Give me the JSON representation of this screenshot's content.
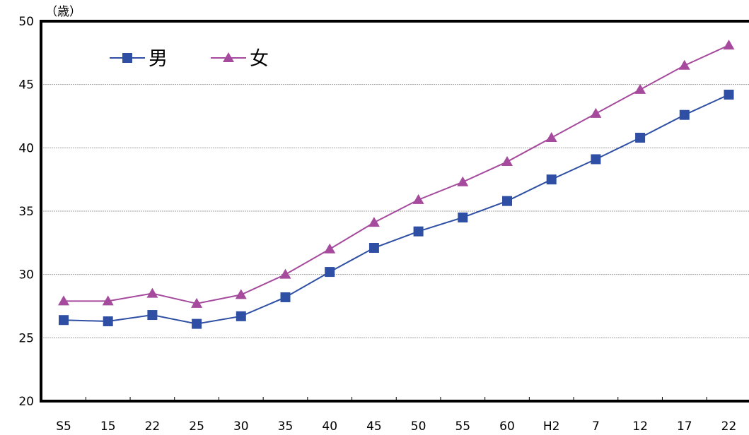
{
  "chart_data": {
    "type": "line",
    "unit_label": "（歳）",
    "categories": [
      "S5",
      "15",
      "22",
      "25",
      "30",
      "35",
      "40",
      "45",
      "50",
      "55",
      "60",
      "H2",
      "7",
      "12",
      "17",
      "22"
    ],
    "ylim": [
      20,
      50
    ],
    "yticks": [
      20,
      25,
      30,
      35,
      40,
      45,
      50
    ],
    "grid": true,
    "legend_position": "top-left",
    "series": [
      {
        "name": "男",
        "color": "#2e4fa3",
        "marker": "square",
        "values": [
          26.4,
          26.3,
          26.8,
          26.1,
          26.7,
          28.2,
          30.2,
          32.1,
          33.4,
          34.5,
          35.8,
          37.5,
          39.1,
          40.8,
          42.6,
          44.2
        ]
      },
      {
        "name": "女",
        "color": "#a54a9c",
        "marker": "triangle",
        "values": [
          27.9,
          27.9,
          28.5,
          27.7,
          28.4,
          30.0,
          32.0,
          34.1,
          35.9,
          37.3,
          38.9,
          40.8,
          42.7,
          44.6,
          46.5,
          48.1
        ]
      }
    ]
  }
}
